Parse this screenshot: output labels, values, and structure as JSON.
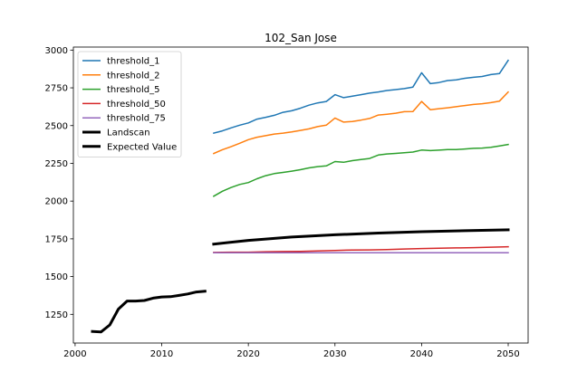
{
  "chart_data": {
    "type": "line",
    "title": "102_San Jose",
    "xlabel": "",
    "ylabel": "",
    "xlim": [
      1999.8,
      2052.3
    ],
    "ylim": [
      1060,
      3020
    ],
    "xticks": [
      2000,
      2010,
      2020,
      2030,
      2040,
      2050
    ],
    "yticks": [
      1250,
      1500,
      1750,
      2000,
      2250,
      2500,
      2750,
      3000
    ],
    "grid": false,
    "legend_position": "top-left",
    "series": [
      {
        "name": "threshold_1",
        "color": "#1f77b4",
        "width": 1.5,
        "x": [
          2016,
          2017,
          2018,
          2019,
          2020,
          2021,
          2022,
          2023,
          2024,
          2025,
          2026,
          2027,
          2028,
          2029,
          2030,
          2031,
          2032,
          2033,
          2034,
          2035,
          2036,
          2037,
          2038,
          2039,
          2040,
          2041,
          2042,
          2043,
          2044,
          2045,
          2046,
          2047,
          2048,
          2049,
          2050
        ],
        "y": [
          2450,
          2465,
          2485,
          2503,
          2518,
          2543,
          2555,
          2568,
          2588,
          2598,
          2615,
          2635,
          2650,
          2660,
          2705,
          2685,
          2695,
          2705,
          2715,
          2723,
          2732,
          2738,
          2745,
          2755,
          2850,
          2778,
          2785,
          2798,
          2803,
          2813,
          2820,
          2825,
          2838,
          2845,
          2932
        ]
      },
      {
        "name": "threshold_2",
        "color": "#ff7f0e",
        "width": 1.5,
        "x": [
          2016,
          2017,
          2018,
          2019,
          2020,
          2021,
          2022,
          2023,
          2024,
          2025,
          2026,
          2027,
          2028,
          2029,
          2030,
          2031,
          2032,
          2033,
          2034,
          2035,
          2036,
          2037,
          2038,
          2039,
          2040,
          2041,
          2042,
          2043,
          2044,
          2045,
          2046,
          2047,
          2048,
          2049,
          2050
        ],
        "y": [
          2315,
          2340,
          2360,
          2383,
          2407,
          2423,
          2433,
          2444,
          2450,
          2458,
          2468,
          2478,
          2493,
          2503,
          2550,
          2523,
          2527,
          2536,
          2547,
          2570,
          2575,
          2582,
          2592,
          2593,
          2660,
          2605,
          2612,
          2618,
          2625,
          2633,
          2640,
          2645,
          2652,
          2662,
          2722
        ]
      },
      {
        "name": "threshold_5",
        "color": "#2ca02c",
        "width": 1.5,
        "x": [
          2016,
          2017,
          2018,
          2019,
          2020,
          2021,
          2022,
          2023,
          2024,
          2025,
          2026,
          2027,
          2028,
          2029,
          2030,
          2031,
          2032,
          2033,
          2034,
          2035,
          2036,
          2037,
          2038,
          2039,
          2040,
          2041,
          2042,
          2043,
          2044,
          2045,
          2046,
          2047,
          2048,
          2049,
          2050
        ],
        "y": [
          2032,
          2065,
          2090,
          2110,
          2123,
          2148,
          2168,
          2182,
          2190,
          2198,
          2208,
          2220,
          2228,
          2233,
          2262,
          2257,
          2268,
          2275,
          2282,
          2305,
          2312,
          2316,
          2320,
          2325,
          2338,
          2334,
          2337,
          2341,
          2341,
          2345,
          2349,
          2351,
          2356,
          2365,
          2375
        ]
      },
      {
        "name": "threshold_50",
        "color": "#d62728",
        "width": 1.5,
        "x": [
          2016,
          2018,
          2020,
          2022,
          2024,
          2026,
          2028,
          2030,
          2032,
          2034,
          2036,
          2038,
          2040,
          2042,
          2044,
          2046,
          2048,
          2050
        ],
        "y": [
          1660,
          1662,
          1662,
          1665,
          1666,
          1667,
          1670,
          1673,
          1676,
          1677,
          1679,
          1683,
          1686,
          1688,
          1690,
          1692,
          1695,
          1698
        ]
      },
      {
        "name": "threshold_75",
        "color": "#9467bd",
        "width": 1.5,
        "x": [
          2016,
          2020,
          2030,
          2040,
          2050
        ],
        "y": [
          1658,
          1658,
          1658,
          1658,
          1658
        ]
      },
      {
        "name": "Landscan",
        "color": "#000000",
        "width": 3,
        "x": [
          2002,
          2003,
          2004,
          2005,
          2006,
          2007,
          2008,
          2009,
          2010,
          2011,
          2012,
          2013,
          2014,
          2015
        ],
        "y": [
          1137,
          1134,
          1180,
          1285,
          1338,
          1338,
          1342,
          1357,
          1365,
          1367,
          1375,
          1385,
          1398,
          1403
        ]
      },
      {
        "name": "Expected Value",
        "color": "#000000",
        "width": 3,
        "x": [
          2016,
          2020,
          2025,
          2030,
          2035,
          2040,
          2045,
          2050
        ],
        "y": [
          1715,
          1740,
          1762,
          1777,
          1788,
          1797,
          1804,
          1810
        ]
      }
    ]
  }
}
